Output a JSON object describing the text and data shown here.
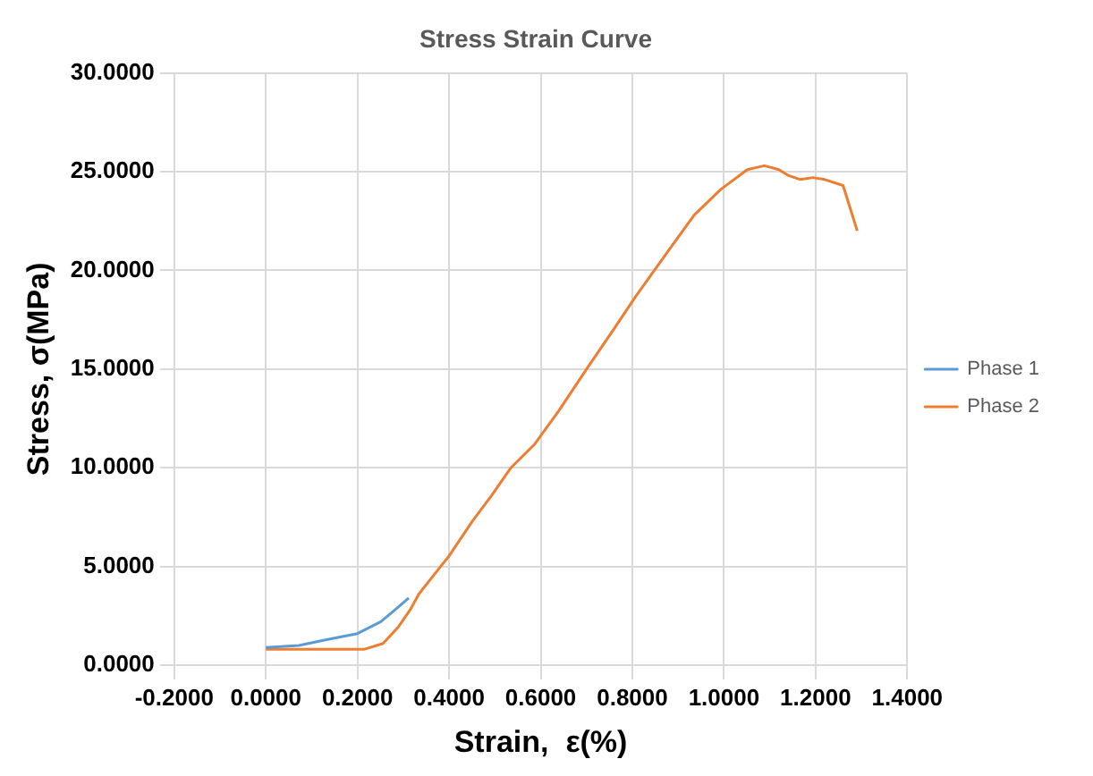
{
  "chart_data": {
    "type": "line",
    "title": "Stress Strain Curve",
    "xlabel": "Strain,  ε(%)",
    "ylabel": "Stress, σ(MPa)",
    "xlim": [
      -0.2,
      1.4
    ],
    "xticks": [
      {
        "value": -0.2,
        "label": "-0.2000"
      },
      {
        "value": 0,
        "label": "0.0000"
      },
      {
        "value": 0.2,
        "label": "0.2000"
      },
      {
        "value": 0.4,
        "label": "0.4000"
      },
      {
        "value": 0.6,
        "label": "0.6000"
      },
      {
        "value": 0.8,
        "label": "0.8000"
      },
      {
        "value": 1.0,
        "label": "1.0000"
      },
      {
        "value": 1.2,
        "label": "1.2000"
      },
      {
        "value": 1.4,
        "label": "1.4000"
      }
    ],
    "ylim": [
      0,
      30
    ],
    "yticks": [
      {
        "value": 0,
        "label": "0.0000"
      },
      {
        "value": 5,
        "label": "5.0000"
      },
      {
        "value": 10,
        "label": "10.0000"
      },
      {
        "value": 15,
        "label": "15.0000"
      },
      {
        "value": 20,
        "label": "20.0000"
      },
      {
        "value": 25,
        "label": "25.0000"
      },
      {
        "value": 30,
        "label": "30.0000"
      }
    ],
    "grid": true,
    "legend": "right",
    "marker": "none",
    "line_style": "solid",
    "series": [
      {
        "name": "Phase 1",
        "color": "#5b9bd5",
        "x": [
          0,
          0.072,
          0.135,
          0.2,
          0.251,
          0.282,
          0.312
        ],
        "values": [
          0.9,
          1.0,
          1.3,
          1.6,
          2.2,
          2.8,
          3.4
        ]
      },
      {
        "name": "Phase 2",
        "color": "#ed7d31",
        "x": [
          0,
          0.214,
          0.256,
          0.288,
          0.315,
          0.334,
          0.368,
          0.399,
          0.451,
          0.493,
          0.535,
          0.587,
          0.64,
          0.703,
          0.756,
          0.808,
          0.845,
          0.882,
          0.935,
          0.993,
          1.051,
          1.088,
          1.12,
          1.141,
          1.167,
          1.194,
          1.22,
          1.26,
          1.291
        ],
        "values": [
          0.8,
          0.8,
          1.1,
          1.9,
          2.8,
          3.6,
          4.6,
          5.5,
          7.3,
          8.6,
          10.0,
          11.2,
          12.9,
          15.1,
          16.9,
          18.7,
          19.9,
          21.1,
          22.8,
          24.1,
          25.1,
          25.3,
          25.1,
          24.8,
          24.6,
          24.7,
          24.6,
          24.3,
          22.0
        ]
      }
    ]
  }
}
